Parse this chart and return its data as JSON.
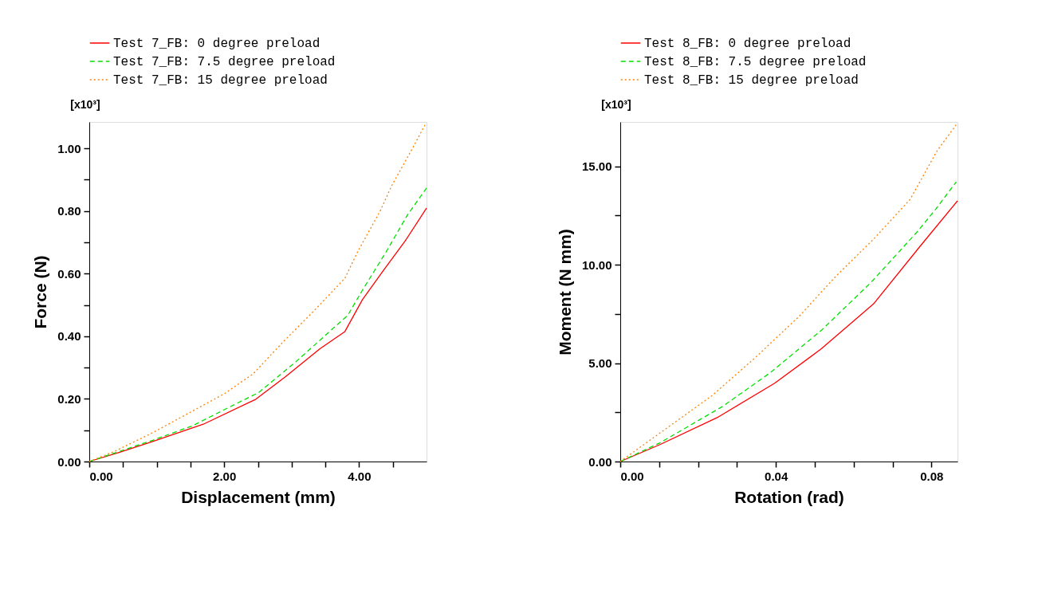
{
  "chart_data": [
    {
      "type": "line",
      "xlabel": "Displacement (mm)",
      "ylabel": "Force (N)",
      "annotations": [
        "[x10³]"
      ],
      "legend": "top",
      "grid": false,
      "marker": "none",
      "xlim": [
        0,
        5
      ],
      "ylim": [
        0,
        1.084
      ],
      "xticks": [
        {
          "value": 0,
          "label": "0.00"
        },
        {
          "value": 0.5,
          "label": null
        },
        {
          "value": 1,
          "label": null
        },
        {
          "value": 1.5,
          "label": null
        },
        {
          "value": 2,
          "label": "2.00"
        },
        {
          "value": 2.5,
          "label": null
        },
        {
          "value": 3,
          "label": null
        },
        {
          "value": 3.5,
          "label": null
        },
        {
          "value": 4,
          "label": "4.00"
        },
        {
          "value": 4.5,
          "label": null
        }
      ],
      "yticks": [
        {
          "value": 0,
          "label": "0.00"
        },
        {
          "value": 0.1,
          "label": null
        },
        {
          "value": 0.2,
          "label": "0.20"
        },
        {
          "value": 0.3,
          "label": null
        },
        {
          "value": 0.4,
          "label": "0.40"
        },
        {
          "value": 0.5,
          "label": null
        },
        {
          "value": 0.6,
          "label": "0.60"
        },
        {
          "value": 0.7,
          "label": null
        },
        {
          "value": 0.8,
          "label": "0.80"
        },
        {
          "value": 0.9,
          "label": null
        },
        {
          "value": 1.0,
          "label": "1.00"
        }
      ],
      "series": [
        {
          "name": "Test 7_FB: 0 degree preload",
          "color": "#ff0000",
          "line_style": "solid",
          "x": [
            0,
            0.46,
            0.94,
            1.69,
            2.47,
            2.91,
            3.42,
            3.79,
            4.05,
            4.36,
            4.68,
            5.0
          ],
          "values": [
            0,
            0.03,
            0.064,
            0.119,
            0.199,
            0.271,
            0.36,
            0.415,
            0.517,
            0.61,
            0.703,
            0.809
          ]
        },
        {
          "name": "Test 7_FB: 7.5 degree preload",
          "color": "#00e000",
          "line_style": "dashed",
          "x": [
            0,
            0.94,
            1.53,
            2.08,
            2.51,
            3.06,
            3.63,
            3.83,
            4.05,
            4.4,
            4.72,
            5.0
          ],
          "values": [
            0,
            0.068,
            0.114,
            0.174,
            0.22,
            0.318,
            0.428,
            0.466,
            0.547,
            0.669,
            0.788,
            0.873
          ]
        },
        {
          "name": "Test 7_FB: 15 degree preload",
          "color": "#ff8000",
          "line_style": "dotted",
          "x": [
            0,
            0.39,
            0.94,
            1.53,
            2.0,
            2.43,
            2.87,
            3.34,
            3.79,
            3.97,
            4.32,
            4.48,
            4.8,
            4.99
          ],
          "values": [
            0,
            0.034,
            0.092,
            0.161,
            0.216,
            0.28,
            0.381,
            0.483,
            0.585,
            0.666,
            0.803,
            0.879,
            1.003,
            1.08
          ]
        }
      ]
    },
    {
      "type": "line",
      "xlabel": "Rotation (rad)",
      "ylabel": "Moment (N mm)",
      "annotations": [
        "[x10³]"
      ],
      "legend": "top",
      "grid": false,
      "marker": "none",
      "xlim": [
        0,
        0.0867
      ],
      "ylim": [
        0,
        17.26
      ],
      "xticks": [
        {
          "value": 0,
          "label": "0.00"
        },
        {
          "value": 0.01,
          "label": null
        },
        {
          "value": 0.02,
          "label": null
        },
        {
          "value": 0.03,
          "label": null
        },
        {
          "value": 0.04,
          "label": "0.04"
        },
        {
          "value": 0.05,
          "label": null
        },
        {
          "value": 0.06,
          "label": null
        },
        {
          "value": 0.07,
          "label": null
        },
        {
          "value": 0.08,
          "label": "0.08"
        }
      ],
      "yticks": [
        {
          "value": 0,
          "label": "0.00"
        },
        {
          "value": 2.5,
          "label": null
        },
        {
          "value": 5,
          "label": "5.00"
        },
        {
          "value": 7.5,
          "label": null
        },
        {
          "value": 10,
          "label": "10.00"
        },
        {
          "value": 12.5,
          "label": null
        },
        {
          "value": 15,
          "label": "15.00"
        }
      ],
      "series": [
        {
          "name": "Test 8_FB: 0 degree preload",
          "color": "#ff0000",
          "line_style": "solid",
          "x": [
            0,
            0.0102,
            0.0249,
            0.0397,
            0.0517,
            0.0651,
            0.0772,
            0.0867
          ],
          "values": [
            0,
            0.86,
            2.23,
            3.98,
            5.73,
            8.01,
            10.97,
            13.25
          ]
        },
        {
          "name": "Test 8_FB: 7.5 degree preload",
          "color": "#00e000",
          "line_style": "dashed",
          "x": [
            0,
            0.0102,
            0.0263,
            0.0386,
            0.0517,
            0.0644,
            0.0765,
            0.0812,
            0.0864
          ],
          "values": [
            0,
            0.95,
            2.8,
            4.52,
            6.67,
            9.09,
            11.71,
            12.85,
            14.22
          ]
        },
        {
          "name": "Test 8_FB: 15 degree preload",
          "color": "#ff8000",
          "line_style": "dotted",
          "x": [
            0,
            0.0236,
            0.0348,
            0.046,
            0.0551,
            0.0651,
            0.0745,
            0.0815,
            0.0864
          ],
          "values": [
            0,
            3.35,
            5.3,
            7.38,
            9.35,
            11.3,
            13.32,
            15.81,
            17.12
          ]
        }
      ]
    }
  ]
}
